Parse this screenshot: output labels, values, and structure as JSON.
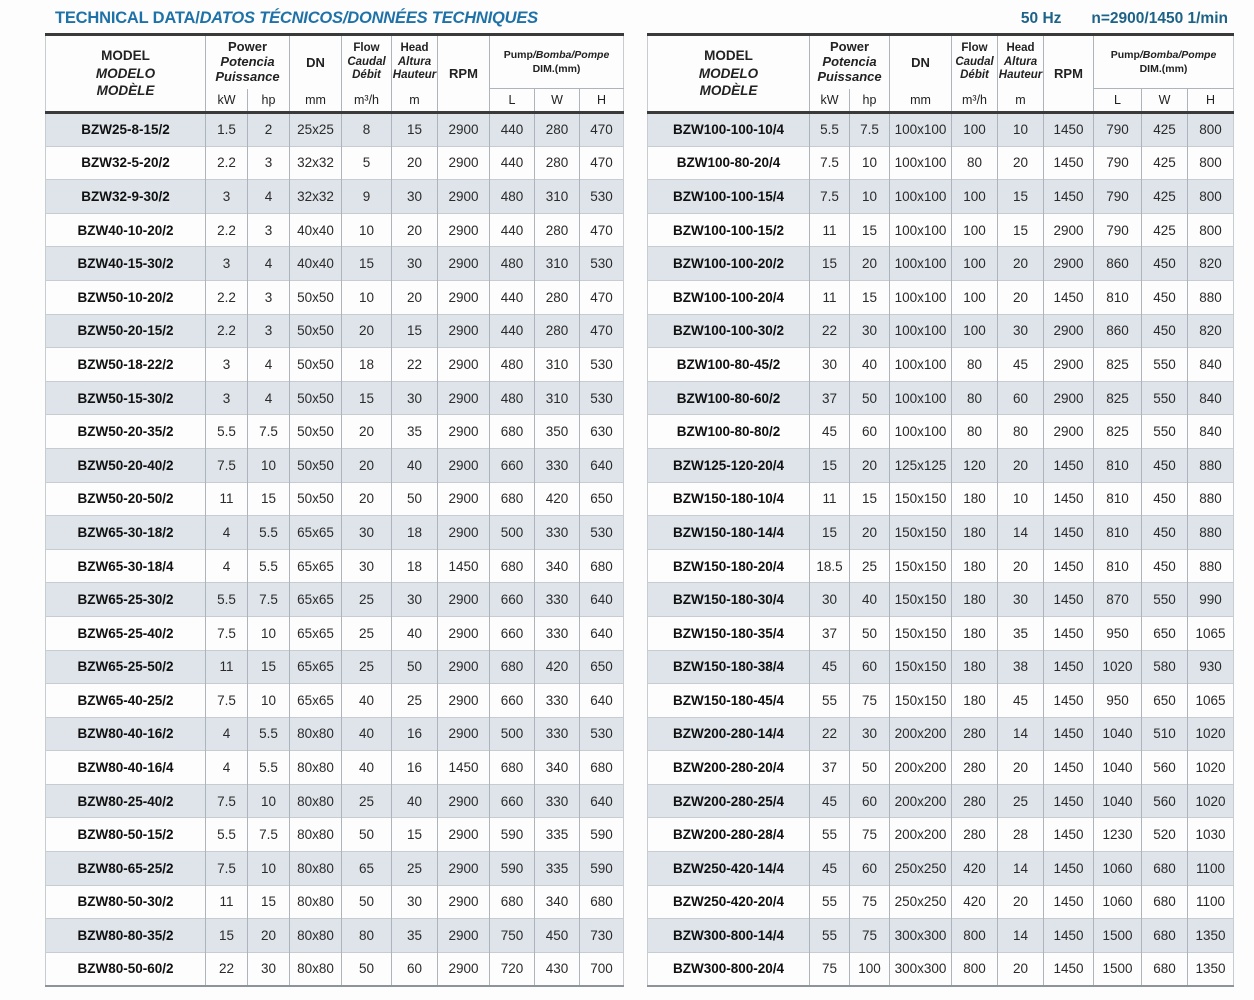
{
  "header": {
    "title_normal": "TECHNICAL DATA/",
    "title_italic": "DATOS TÉCNICOS/DONNÉES TECHNIQUES",
    "frequency": "50 Hz",
    "speed": "n=2900/1450 1/min"
  },
  "colors": {
    "title_blue": "#1f72a8",
    "frequency_blue": "#1d6287",
    "row_shade": "#dee4ea"
  },
  "table_header": {
    "model": [
      "MODEL",
      "MODELO",
      "MODÈLE"
    ],
    "power": [
      "Power",
      "Potencia",
      "Puissance"
    ],
    "dn": "DN",
    "flow": [
      "Flow",
      "Caudal",
      "Débit"
    ],
    "head": [
      "Head",
      "Altura",
      "Hauteur"
    ],
    "rpm": "RPM",
    "dim_line1_normal": "Pump",
    "dim_line1_italic": "/Bomba/Pompe",
    "dim_line2": "DIM.(mm)",
    "units": {
      "kw": "kW",
      "hp": "hp",
      "dn": "mm",
      "flow": "m³/h",
      "head": "m"
    },
    "dim_units": [
      "L",
      "W",
      "H"
    ]
  },
  "left_table": {
    "rows": [
      [
        "BZW25-8-15/2",
        "1.5",
        "2",
        "25x25",
        "8",
        "15",
        "2900",
        "440",
        "280",
        "470"
      ],
      [
        "BZW32-5-20/2",
        "2.2",
        "3",
        "32x32",
        "5",
        "20",
        "2900",
        "440",
        "280",
        "470"
      ],
      [
        "BZW32-9-30/2",
        "3",
        "4",
        "32x32",
        "9",
        "30",
        "2900",
        "480",
        "310",
        "530"
      ],
      [
        "BZW40-10-20/2",
        "2.2",
        "3",
        "40x40",
        "10",
        "20",
        "2900",
        "440",
        "280",
        "470"
      ],
      [
        "BZW40-15-30/2",
        "3",
        "4",
        "40x40",
        "15",
        "30",
        "2900",
        "480",
        "310",
        "530"
      ],
      [
        "BZW50-10-20/2",
        "2.2",
        "3",
        "50x50",
        "10",
        "20",
        "2900",
        "440",
        "280",
        "470"
      ],
      [
        "BZW50-20-15/2",
        "2.2",
        "3",
        "50x50",
        "20",
        "15",
        "2900",
        "440",
        "280",
        "470"
      ],
      [
        "BZW50-18-22/2",
        "3",
        "4",
        "50x50",
        "18",
        "22",
        "2900",
        "480",
        "310",
        "530"
      ],
      [
        "BZW50-15-30/2",
        "3",
        "4",
        "50x50",
        "15",
        "30",
        "2900",
        "480",
        "310",
        "530"
      ],
      [
        "BZW50-20-35/2",
        "5.5",
        "7.5",
        "50x50",
        "20",
        "35",
        "2900",
        "680",
        "350",
        "630"
      ],
      [
        "BZW50-20-40/2",
        "7.5",
        "10",
        "50x50",
        "20",
        "40",
        "2900",
        "660",
        "330",
        "640"
      ],
      [
        "BZW50-20-50/2",
        "11",
        "15",
        "50x50",
        "20",
        "50",
        "2900",
        "680",
        "420",
        "650"
      ],
      [
        "BZW65-30-18/2",
        "4",
        "5.5",
        "65x65",
        "30",
        "18",
        "2900",
        "500",
        "330",
        "530"
      ],
      [
        "BZW65-30-18/4",
        "4",
        "5.5",
        "65x65",
        "30",
        "18",
        "1450",
        "680",
        "340",
        "680"
      ],
      [
        "BZW65-25-30/2",
        "5.5",
        "7.5",
        "65x65",
        "25",
        "30",
        "2900",
        "660",
        "330",
        "640"
      ],
      [
        "BZW65-25-40/2",
        "7.5",
        "10",
        "65x65",
        "25",
        "40",
        "2900",
        "660",
        "330",
        "640"
      ],
      [
        "BZW65-25-50/2",
        "11",
        "15",
        "65x65",
        "25",
        "50",
        "2900",
        "680",
        "420",
        "650"
      ],
      [
        "BZW65-40-25/2",
        "7.5",
        "10",
        "65x65",
        "40",
        "25",
        "2900",
        "660",
        "330",
        "640"
      ],
      [
        "BZW80-40-16/2",
        "4",
        "5.5",
        "80x80",
        "40",
        "16",
        "2900",
        "500",
        "330",
        "530"
      ],
      [
        "BZW80-40-16/4",
        "4",
        "5.5",
        "80x80",
        "40",
        "16",
        "1450",
        "680",
        "340",
        "680"
      ],
      [
        "BZW80-25-40/2",
        "7.5",
        "10",
        "80x80",
        "25",
        "40",
        "2900",
        "660",
        "330",
        "640"
      ],
      [
        "BZW80-50-15/2",
        "5.5",
        "7.5",
        "80x80",
        "50",
        "15",
        "2900",
        "590",
        "335",
        "590"
      ],
      [
        "BZW80-65-25/2",
        "7.5",
        "10",
        "80x80",
        "65",
        "25",
        "2900",
        "590",
        "335",
        "590"
      ],
      [
        "BZW80-50-30/2",
        "11",
        "15",
        "80x80",
        "50",
        "30",
        "2900",
        "680",
        "340",
        "680"
      ],
      [
        "BZW80-80-35/2",
        "15",
        "20",
        "80x80",
        "80",
        "35",
        "2900",
        "750",
        "450",
        "730"
      ],
      [
        "BZW80-50-60/2",
        "22",
        "30",
        "80x80",
        "50",
        "60",
        "2900",
        "720",
        "430",
        "700"
      ]
    ]
  },
  "right_table": {
    "rows": [
      [
        "BZW100-100-10/4",
        "5.5",
        "7.5",
        "100x100",
        "100",
        "10",
        "1450",
        "790",
        "425",
        "800"
      ],
      [
        "BZW100-80-20/4",
        "7.5",
        "10",
        "100x100",
        "80",
        "20",
        "1450",
        "790",
        "425",
        "800"
      ],
      [
        "BZW100-100-15/4",
        "7.5",
        "10",
        "100x100",
        "100",
        "15",
        "1450",
        "790",
        "425",
        "800"
      ],
      [
        "BZW100-100-15/2",
        "11",
        "15",
        "100x100",
        "100",
        "15",
        "2900",
        "790",
        "425",
        "800"
      ],
      [
        "BZW100-100-20/2",
        "15",
        "20",
        "100x100",
        "100",
        "20",
        "2900",
        "860",
        "450",
        "820"
      ],
      [
        "BZW100-100-20/4",
        "11",
        "15",
        "100x100",
        "100",
        "20",
        "1450",
        "810",
        "450",
        "880"
      ],
      [
        "BZW100-100-30/2",
        "22",
        "30",
        "100x100",
        "100",
        "30",
        "2900",
        "860",
        "450",
        "820"
      ],
      [
        "BZW100-80-45/2",
        "30",
        "40",
        "100x100",
        "80",
        "45",
        "2900",
        "825",
        "550",
        "840"
      ],
      [
        "BZW100-80-60/2",
        "37",
        "50",
        "100x100",
        "80",
        "60",
        "2900",
        "825",
        "550",
        "840"
      ],
      [
        "BZW100-80-80/2",
        "45",
        "60",
        "100x100",
        "80",
        "80",
        "2900",
        "825",
        "550",
        "840"
      ],
      [
        "BZW125-120-20/4",
        "15",
        "20",
        "125x125",
        "120",
        "20",
        "1450",
        "810",
        "450",
        "880"
      ],
      [
        "BZW150-180-10/4",
        "11",
        "15",
        "150x150",
        "180",
        "10",
        "1450",
        "810",
        "450",
        "880"
      ],
      [
        "BZW150-180-14/4",
        "15",
        "20",
        "150x150",
        "180",
        "14",
        "1450",
        "810",
        "450",
        "880"
      ],
      [
        "BZW150-180-20/4",
        "18.5",
        "25",
        "150x150",
        "180",
        "20",
        "1450",
        "810",
        "450",
        "880"
      ],
      [
        "BZW150-180-30/4",
        "30",
        "40",
        "150x150",
        "180",
        "30",
        "1450",
        "870",
        "550",
        "990"
      ],
      [
        "BZW150-180-35/4",
        "37",
        "50",
        "150x150",
        "180",
        "35",
        "1450",
        "950",
        "650",
        "1065"
      ],
      [
        "BZW150-180-38/4",
        "45",
        "60",
        "150x150",
        "180",
        "38",
        "1450",
        "1020",
        "580",
        "930"
      ],
      [
        "BZW150-180-45/4",
        "55",
        "75",
        "150x150",
        "180",
        "45",
        "1450",
        "950",
        "650",
        "1065"
      ],
      [
        "BZW200-280-14/4",
        "22",
        "30",
        "200x200",
        "280",
        "14",
        "1450",
        "1040",
        "510",
        "1020"
      ],
      [
        "BZW200-280-20/4",
        "37",
        "50",
        "200x200",
        "280",
        "20",
        "1450",
        "1040",
        "560",
        "1020"
      ],
      [
        "BZW200-280-25/4",
        "45",
        "60",
        "200x200",
        "280",
        "25",
        "1450",
        "1040",
        "560",
        "1020"
      ],
      [
        "BZW200-280-28/4",
        "55",
        "75",
        "200x200",
        "280",
        "28",
        "1450",
        "1230",
        "520",
        "1030"
      ],
      [
        "BZW250-420-14/4",
        "45",
        "60",
        "250x250",
        "420",
        "14",
        "1450",
        "1060",
        "680",
        "1100"
      ],
      [
        "BZW250-420-20/4",
        "55",
        "75",
        "250x250",
        "420",
        "20",
        "1450",
        "1060",
        "680",
        "1100"
      ],
      [
        "BZW300-800-14/4",
        "55",
        "75",
        "300x300",
        "800",
        "14",
        "1450",
        "1500",
        "680",
        "1350"
      ],
      [
        "BZW300-800-20/4",
        "75",
        "100",
        "300x300",
        "800",
        "20",
        "1450",
        "1500",
        "680",
        "1350"
      ]
    ]
  }
}
